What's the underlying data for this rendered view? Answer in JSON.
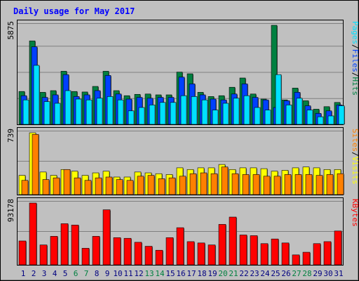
{
  "chart_data": {
    "type": "bar",
    "title": "Daily usage for May 2017",
    "categories": [
      "1",
      "2",
      "3",
      "4",
      "5",
      "6",
      "7",
      "8",
      "9",
      "10",
      "11",
      "12",
      "13",
      "14",
      "15",
      "16",
      "17",
      "18",
      "19",
      "20",
      "21",
      "22",
      "23",
      "24",
      "25",
      "26",
      "27",
      "28",
      "29",
      "30",
      "31"
    ],
    "weekend_days": [
      "6",
      "7",
      "13",
      "14",
      "20",
      "21",
      "27",
      "28"
    ],
    "panels": [
      {
        "id": "pages-files-hits",
        "ymax_label": "5875",
        "ymax": 5875,
        "legend": [
          "Pages",
          "/",
          "Files",
          "/",
          "Hits"
        ],
        "series": [
          {
            "name": "Hits",
            "color": "#008040",
            "values": [
              1950,
              4950,
              1900,
              2000,
              3150,
              1950,
              1920,
              2250,
              3150,
              2000,
              1700,
              1780,
              1800,
              1750,
              1750,
              3100,
              3000,
              1900,
              1650,
              1700,
              2200,
              2750,
              1800,
              1500,
              5875,
              1450,
              2150,
              1400,
              900,
              1050,
              1300
            ]
          },
          {
            "name": "Files",
            "color": "#0040ff",
            "values": [
              1700,
              4600,
              1600,
              1750,
              2950,
              1650,
              1750,
              2000,
              2900,
              1800,
              1500,
              1600,
              1550,
              1600,
              1600,
              2800,
              2400,
              1750,
              1500,
              1450,
              1800,
              2400,
              1600,
              1450,
              1000,
              1400,
              1900,
              1100,
              650,
              800,
              1150
            ]
          },
          {
            "name": "Pages",
            "color": "#00e0ff",
            "values": [
              1450,
              3500,
              1350,
              1250,
              2000,
              1500,
              1450,
              1550,
              1650,
              1450,
              800,
              1000,
              1150,
              1300,
              1300,
              1700,
              1650,
              1450,
              850,
              1250,
              1550,
              1700,
              1000,
              850,
              2950,
              1150,
              1550,
              850,
              450,
              500,
              1100
            ]
          }
        ]
      },
      {
        "id": "sites-visits",
        "ymax_label": "739",
        "ymax": 739,
        "legend": [
          "Sites",
          "/",
          "Visits"
        ],
        "series": [
          {
            "name": "Visits",
            "color": "#ffff00",
            "values": [
              230,
              739,
              270,
              230,
              300,
              280,
              230,
              260,
              280,
              210,
              210,
              270,
              260,
              250,
              240,
              320,
              300,
              320,
              320,
              360,
              300,
              320,
              320,
              310,
              280,
              290,
              320,
              330,
              320,
              300,
              300
            ]
          },
          {
            "name": "Sites",
            "color": "#ff8000",
            "values": [
              170,
              720,
              180,
              200,
              300,
              200,
              170,
              200,
              210,
              180,
              170,
              220,
              230,
              190,
              200,
              220,
              250,
              260,
              250,
              330,
              250,
              240,
              240,
              220,
              220,
              240,
              240,
              240,
              230,
              240,
              250
            ]
          }
        ]
      },
      {
        "id": "kbytes",
        "ymax_label": "93178",
        "ymax": 93178,
        "legend": [
          "KBytes"
        ],
        "series": [
          {
            "name": "KBytes",
            "color": "#ff0000",
            "values": [
              36000,
              93178,
              30000,
              43000,
              62000,
              60000,
              25000,
              43000,
              83000,
              41000,
              40000,
              34000,
              28000,
              22000,
              41000,
              56000,
              35000,
              33000,
              30000,
              61000,
              72000,
              45000,
              44000,
              32000,
              39000,
              33000,
              15000,
              19000,
              32000,
              35000,
              51000
            ]
          }
        ]
      }
    ],
    "grid": true
  },
  "colors": {
    "background": "#c0c0c0",
    "title": "#0000ff",
    "weekday_label": "#000080",
    "weekend_label": "#008040",
    "kbytes_legend": "#ff0000"
  }
}
